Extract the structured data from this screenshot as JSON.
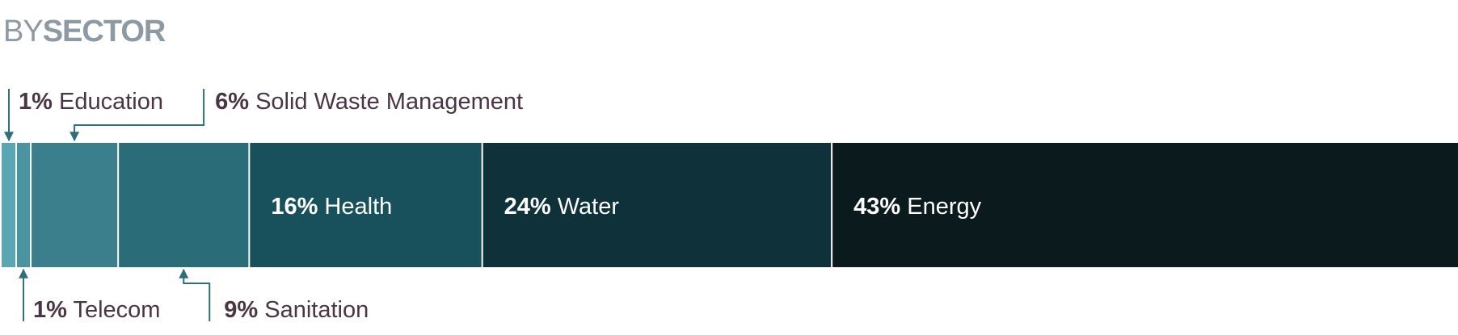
{
  "title": {
    "prefix": "BY",
    "main": "SECTOR"
  },
  "colors": {
    "title": "#8e9aa3",
    "label_text": "#4a3544",
    "inside_text": "#ffffff",
    "leader": "#2f6f7b",
    "separator": "#ffffff"
  },
  "chart_data": {
    "type": "bar",
    "orientation": "horizontal-stacked-100",
    "title": "BY SECTOR",
    "unit": "%",
    "segments": [
      {
        "name": "Education",
        "pct_label": "1%",
        "value": 1,
        "color": "#5aa6b3",
        "label_pos": "above"
      },
      {
        "name": "Telecom",
        "pct_label": "1%",
        "value": 1,
        "color": "#4a93a0",
        "label_pos": "below"
      },
      {
        "name": "Solid Waste Management",
        "pct_label": "6%",
        "value": 6,
        "color": "#3a7f8b",
        "label_pos": "above"
      },
      {
        "name": "Sanitation",
        "pct_label": "9%",
        "value": 9,
        "color": "#2a6c78",
        "label_pos": "below"
      },
      {
        "name": "Health",
        "pct_label": "16%",
        "value": 16,
        "color": "#18515c",
        "label_pos": "inside"
      },
      {
        "name": "Water",
        "pct_label": "24%",
        "value": 24,
        "color": "#0f323a",
        "label_pos": "inside"
      },
      {
        "name": "Energy",
        "pct_label": "43%",
        "value": 43,
        "color": "#0a1a1d",
        "label_pos": "inside"
      }
    ]
  }
}
